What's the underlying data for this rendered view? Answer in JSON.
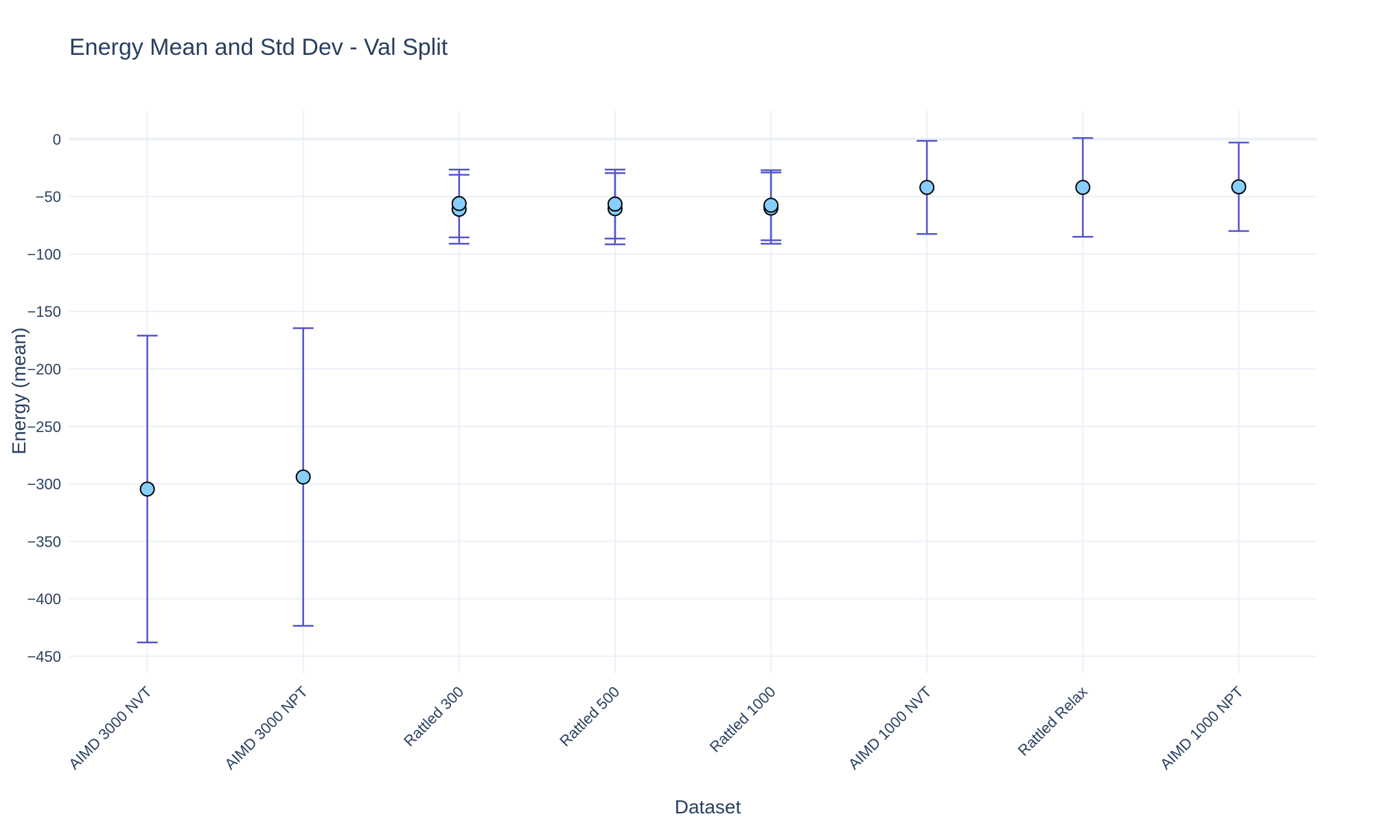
{
  "chart_data": {
    "type": "scatter",
    "title": "Energy Mean and Std Dev - Val Split",
    "xlabel": "Dataset",
    "ylabel": "Energy (mean)",
    "categories": [
      "AIMD 3000 NVT",
      "AIMD 3000 NPT",
      "Rattled 300",
      "Rattled 500",
      "Rattled 1000",
      "AIMD 1000 NVT",
      "Rattled Relax",
      "AIMD 1000 NPT"
    ],
    "ylim": [
      -465,
      25
    ],
    "yticks": [
      0,
      -50,
      -100,
      -150,
      -200,
      -250,
      -300,
      -350,
      -400,
      -450
    ],
    "ytick_labels": [
      "0",
      "−50",
      "−100",
      "−150",
      "−200",
      "−250",
      "−300",
      "−350",
      "−400",
      "−450"
    ],
    "series": [
      {
        "name": "Energy",
        "points": [
          {
            "x": "AIMD 3000 NVT",
            "y": -304.5,
            "std": 133.5
          },
          {
            "x": "AIMD 3000 NPT",
            "y": -294.0,
            "std": 129.5
          },
          {
            "x": "Rattled 300",
            "y": -61.0,
            "std": 30.0
          },
          {
            "x": "Rattled 300",
            "y": -56.0,
            "std": 29.5
          },
          {
            "x": "Rattled 500",
            "y": -60.5,
            "std": 31.0
          },
          {
            "x": "Rattled 500",
            "y": -56.5,
            "std": 30.0
          },
          {
            "x": "Rattled 1000",
            "y": -60.0,
            "std": 31.0
          },
          {
            "x": "Rattled 1000",
            "y": -57.5,
            "std": 30.5
          },
          {
            "x": "AIMD 1000 NVT",
            "y": -42.0,
            "std": 40.5
          },
          {
            "x": "Rattled Relax",
            "y": -42.0,
            "std": 43.0
          },
          {
            "x": "AIMD 1000 NPT",
            "y": -41.5,
            "std": 38.5
          }
        ]
      }
    ],
    "colors": {
      "marker": "#87cefa",
      "marker_edge": "#000000",
      "error_bar": "#5454c8",
      "grid": "#ebf0f8",
      "text": "#2a3f5f"
    }
  }
}
